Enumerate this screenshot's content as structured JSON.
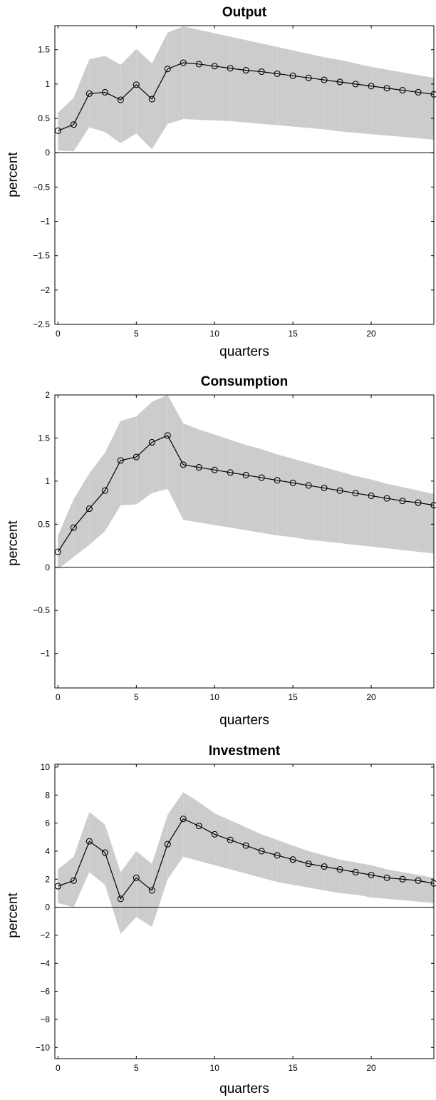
{
  "chart_data": [
    {
      "type": "line",
      "title": "Output",
      "xlabel": "quarters",
      "ylabel": "percent",
      "xlim": [
        -0.2,
        24
      ],
      "ylim": [
        -2.5,
        1.85
      ],
      "xticks": [
        0,
        5,
        10,
        15,
        20
      ],
      "yticks": [
        -2.5,
        -2,
        -1.5,
        -1,
        -0.5,
        0,
        0.5,
        1,
        1.5
      ],
      "ytick_labels": [
        "−2.5",
        "−2",
        "−1.5",
        "−1",
        "−0.5",
        "0",
        "0.5",
        "1",
        "1.5"
      ],
      "grid": false,
      "zero_line": true,
      "band_color": "#cccccc",
      "line_color": "#000000",
      "x": [
        0,
        1,
        2,
        3,
        4,
        5,
        6,
        7,
        8,
        9,
        10,
        11,
        12,
        13,
        14,
        15,
        16,
        17,
        18,
        19,
        20,
        21,
        22,
        23,
        24
      ],
      "series": [
        {
          "values": [
            0.32,
            0.41,
            0.86,
            0.88,
            0.77,
            0.99,
            0.78,
            1.22,
            1.31,
            1.29,
            1.26,
            1.23,
            1.2,
            1.18,
            1.15,
            1.12,
            1.09,
            1.06,
            1.03,
            1.0,
            0.97,
            0.94,
            0.91,
            0.88,
            0.85
          ]
        }
      ],
      "band": {
        "lower": [
          0.03,
          0.02,
          0.37,
          0.3,
          0.14,
          0.28,
          0.05,
          0.42,
          0.49,
          0.48,
          0.47,
          0.46,
          0.44,
          0.42,
          0.4,
          0.38,
          0.36,
          0.34,
          0.31,
          0.29,
          0.27,
          0.25,
          0.23,
          0.21,
          0.19
        ],
        "upper": [
          0.58,
          0.8,
          1.36,
          1.41,
          1.28,
          1.51,
          1.3,
          1.75,
          1.84,
          1.79,
          1.74,
          1.69,
          1.64,
          1.59,
          1.54,
          1.49,
          1.44,
          1.39,
          1.35,
          1.3,
          1.25,
          1.21,
          1.17,
          1.13,
          1.09
        ]
      }
    },
    {
      "type": "line",
      "title": "Consumption",
      "xlabel": "quarters",
      "ylabel": "percent",
      "xlim": [
        -0.2,
        24
      ],
      "ylim": [
        -1.4,
        2.0
      ],
      "xticks": [
        0,
        5,
        10,
        15,
        20
      ],
      "yticks": [
        -1,
        -0.5,
        0,
        0.5,
        1,
        1.5,
        2
      ],
      "ytick_labels": [
        "−1",
        "−0.5",
        "0",
        "0.5",
        "1",
        "1.5",
        "2"
      ],
      "grid": false,
      "zero_line": true,
      "band_color": "#cccccc",
      "line_color": "#000000",
      "x": [
        0,
        1,
        2,
        3,
        4,
        5,
        6,
        7,
        8,
        9,
        10,
        11,
        12,
        13,
        14,
        15,
        16,
        17,
        18,
        19,
        20,
        21,
        22,
        23,
        24
      ],
      "series": [
        {
          "values": [
            0.18,
            0.46,
            0.68,
            0.89,
            1.24,
            1.28,
            1.45,
            1.53,
            1.19,
            1.16,
            1.13,
            1.1,
            1.07,
            1.04,
            1.01,
            0.98,
            0.95,
            0.92,
            0.89,
            0.86,
            0.83,
            0.8,
            0.77,
            0.75,
            0.72
          ]
        }
      ],
      "band": {
        "lower": [
          -0.02,
          0.12,
          0.26,
          0.42,
          0.72,
          0.73,
          0.86,
          0.91,
          0.55,
          0.52,
          0.49,
          0.46,
          0.43,
          0.4,
          0.37,
          0.35,
          0.32,
          0.3,
          0.28,
          0.26,
          0.24,
          0.22,
          0.2,
          0.18,
          0.16
        ],
        "upper": [
          0.37,
          0.79,
          1.09,
          1.33,
          1.7,
          1.75,
          1.92,
          2.0,
          1.67,
          1.6,
          1.54,
          1.48,
          1.42,
          1.37,
          1.31,
          1.26,
          1.21,
          1.16,
          1.11,
          1.06,
          1.02,
          0.97,
          0.93,
          0.89,
          0.85
        ]
      }
    },
    {
      "type": "line",
      "title": "Investment",
      "xlabel": "quarters",
      "ylabel": "percent",
      "xlim": [
        -0.2,
        24
      ],
      "ylim": [
        -10.8,
        10.2
      ],
      "xticks": [
        0,
        5,
        10,
        15,
        20
      ],
      "yticks": [
        -10,
        -8,
        -6,
        -4,
        -2,
        0,
        2,
        4,
        6,
        8,
        10
      ],
      "ytick_labels": [
        "−10",
        "−8",
        "−6",
        "−4",
        "−2",
        "0",
        "2",
        "4",
        "6",
        "8",
        "10"
      ],
      "grid": false,
      "zero_line": true,
      "band_color": "#cccccc",
      "line_color": "#000000",
      "x": [
        0,
        1,
        2,
        3,
        4,
        5,
        6,
        7,
        8,
        9,
        10,
        11,
        12,
        13,
        14,
        15,
        16,
        17,
        18,
        19,
        20,
        21,
        22,
        23,
        24
      ],
      "series": [
        {
          "values": [
            1.5,
            1.9,
            4.7,
            3.9,
            0.6,
            2.1,
            1.2,
            4.5,
            6.3,
            5.8,
            5.2,
            4.8,
            4.4,
            4.0,
            3.7,
            3.4,
            3.1,
            2.9,
            2.7,
            2.5,
            2.3,
            2.1,
            2.0,
            1.9,
            1.7
          ]
        }
      ],
      "band": {
        "lower": [
          0.3,
          0.0,
          2.5,
          1.6,
          -1.9,
          -0.7,
          -1.4,
          2.0,
          3.6,
          3.3,
          3.0,
          2.7,
          2.4,
          2.1,
          1.8,
          1.6,
          1.4,
          1.2,
          1.0,
          0.9,
          0.7,
          0.6,
          0.5,
          0.4,
          0.3
        ],
        "upper": [
          2.7,
          3.6,
          6.8,
          5.9,
          2.5,
          4.0,
          3.1,
          6.6,
          8.2,
          7.5,
          6.7,
          6.2,
          5.7,
          5.2,
          4.8,
          4.4,
          4.0,
          3.7,
          3.4,
          3.2,
          3.0,
          2.7,
          2.5,
          2.3,
          2.1
        ]
      }
    }
  ]
}
